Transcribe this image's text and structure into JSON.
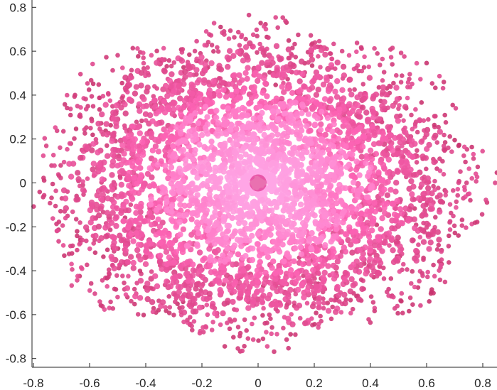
{
  "chart_data": {
    "type": "scatter",
    "title": "",
    "xlabel": "",
    "ylabel": "",
    "xlim": [
      -0.805,
      0.85
    ],
    "ylim": [
      -0.84,
      0.84
    ],
    "xticks": [
      "-0.8",
      "-0.6",
      "-0.4",
      "-0.2",
      "0",
      "0.2",
      "0.4",
      "0.6",
      "0.8"
    ],
    "yticks": [
      "0.8",
      "0.6",
      "0.4",
      "0.2",
      "0",
      "-0.2",
      "-0.4",
      "-0.6",
      "-0.8"
    ],
    "grid": false,
    "legend": "none",
    "colors": {
      "inner": "#ffa6e6",
      "middle": "#ff66b8",
      "outer": "#c8336e",
      "axis": "#262626"
    }
  }
}
